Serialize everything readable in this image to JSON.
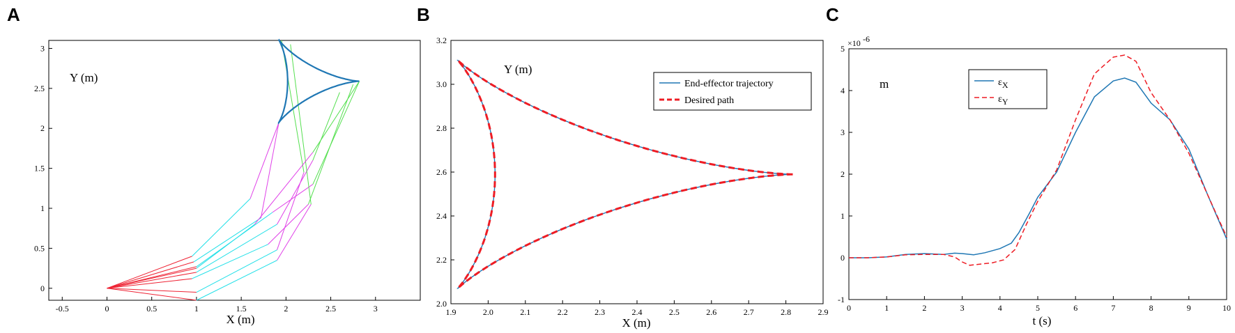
{
  "panels": {
    "A": {
      "letter": "A"
    },
    "B": {
      "letter": "B"
    },
    "C": {
      "letter": "C"
    }
  },
  "chart_data": [
    {
      "panel": "A",
      "type": "line",
      "xlabel": "X (m)",
      "ylabel": "Y (m)",
      "xlim": [
        -0.65,
        3.5
      ],
      "ylim": [
        -0.15,
        3.1
      ],
      "xticks": [
        -0.5,
        0,
        0.5,
        1,
        1.5,
        2,
        2.5,
        3
      ],
      "yticks": [
        0,
        0.5,
        1,
        1.5,
        2,
        2.5,
        3
      ],
      "colors": {
        "link1": "#ee2233",
        "link2": "#22e0e8",
        "link3": "#e040e8",
        "link4": "#55e050",
        "path": "#1f77b4"
      },
      "configurations": [
        {
          "pts": [
            [
              0,
              0
            ],
            [
              0.97,
              0.33
            ],
            [
              1.72,
              0.88
            ],
            [
              1.92,
              2.07
            ]
          ]
        },
        {
          "pts": [
            [
              0,
              0
            ],
            [
              0.95,
              0.4
            ],
            [
              1.6,
              1.12
            ],
            [
              1.92,
              2.07
            ]
          ]
        },
        {
          "pts": [
            [
              0,
              0
            ],
            [
              1.0,
              0.27
            ],
            [
              1.85,
              0.95
            ],
            [
              2.3,
              1.3
            ],
            [
              2.82,
              2.59
            ]
          ]
        },
        {
          "pts": [
            [
              0,
              0
            ],
            [
              1.0,
              0.2
            ],
            [
              1.9,
              0.8
            ],
            [
              2.3,
              1.6
            ],
            [
              2.6,
              2.45
            ]
          ]
        },
        {
          "pts": [
            [
              0,
              0
            ],
            [
              0.95,
              0.12
            ],
            [
              1.8,
              0.55
            ],
            [
              2.25,
              1.05
            ],
            [
              2.75,
              2.55
            ]
          ]
        },
        {
          "pts": [
            [
              0,
              0
            ],
            [
              1.0,
              -0.05
            ],
            [
              1.9,
              0.48
            ],
            [
              2.2,
              1.45
            ],
            [
              1.95,
              3.1
            ]
          ]
        },
        {
          "pts": [
            [
              0,
              0
            ],
            [
              1.0,
              -0.15
            ],
            [
              1.9,
              0.35
            ],
            [
              2.28,
              1.05
            ],
            [
              2.05,
              3.05
            ]
          ]
        },
        {
          "pts": [
            [
              0,
              0
            ],
            [
              1.0,
              0.25
            ],
            [
              1.65,
              0.8
            ],
            [
              2.3,
              1.7
            ],
            [
              2.82,
              2.59
            ]
          ]
        }
      ],
      "path": {
        "center": [
          2.2185,
          2.5897
        ],
        "radius": 0.6,
        "t_range": [
          0,
          6.2832
        ]
      }
    },
    {
      "panel": "B",
      "type": "line",
      "xlabel": "X (m)",
      "ylabel": "Y (m)",
      "xlim": [
        1.9,
        2.9
      ],
      "ylim": [
        2.0,
        3.2
      ],
      "xticks": [
        1.9,
        2.0,
        2.1,
        2.2,
        2.3,
        2.4,
        2.5,
        2.6,
        2.7,
        2.8,
        2.9
      ],
      "yticks": [
        2.0,
        2.2,
        2.4,
        2.6,
        2.8,
        3.0,
        3.2
      ],
      "series": [
        {
          "name": "End-effector trajectory",
          "color": "#1f77b4",
          "style": "solid"
        },
        {
          "name": "Desired path",
          "color": "#ee1c24",
          "style": "dashed"
        }
      ],
      "curve": {
        "center": [
          2.2185,
          2.5897
        ],
        "radius": 0.6
      },
      "legend": "top-right"
    },
    {
      "panel": "C",
      "type": "line",
      "xlabel": "t (s)",
      "ylabel": "m",
      "exponent": "×10",
      "exponent_power": "-6",
      "xlim": [
        0,
        10
      ],
      "ylim": [
        -1,
        5
      ],
      "xticks": [
        0,
        1,
        2,
        3,
        4,
        5,
        6,
        7,
        8,
        9,
        10
      ],
      "yticks": [
        -1,
        0,
        1,
        2,
        3,
        4,
        5
      ],
      "legend": "top-center",
      "series": [
        {
          "name": "εX",
          "symbol": "ε",
          "sub": "X",
          "color": "#1f77b4",
          "style": "solid",
          "x": [
            0,
            0.5,
            1,
            1.5,
            2,
            2.5,
            2.8,
            3.0,
            3.3,
            3.6,
            4.0,
            4.3,
            4.5,
            4.8,
            5.0,
            5.5,
            6.0,
            6.5,
            7.0,
            7.3,
            7.6,
            8.0,
            8.5,
            9.0,
            9.5,
            10
          ],
          "y": [
            0,
            0,
            0.02,
            0.08,
            0.1,
            0.08,
            0.11,
            0.1,
            0.07,
            0.12,
            0.22,
            0.35,
            0.6,
            1.1,
            1.45,
            2.05,
            3.0,
            3.85,
            4.23,
            4.3,
            4.2,
            3.7,
            3.3,
            2.6,
            1.5,
            0.45
          ]
        },
        {
          "name": "εY",
          "symbol": "ε",
          "sub": "Y",
          "color": "#ee1c24",
          "style": "dashed",
          "x": [
            0,
            0.5,
            1,
            1.5,
            2,
            2.5,
            2.8,
            3.0,
            3.2,
            3.5,
            3.8,
            4.1,
            4.4,
            4.7,
            5.0,
            5.5,
            6.0,
            6.5,
            7.0,
            7.3,
            7.6,
            8.0,
            8.5,
            9.0,
            9.5,
            10
          ],
          "y": [
            0,
            0,
            0.02,
            0.07,
            0.08,
            0.08,
            0.02,
            -0.1,
            -0.18,
            -0.15,
            -0.12,
            -0.05,
            0.2,
            0.8,
            1.35,
            2.1,
            3.3,
            4.4,
            4.8,
            4.85,
            4.7,
            3.95,
            3.3,
            2.5,
            1.5,
            0.5
          ]
        }
      ]
    }
  ]
}
